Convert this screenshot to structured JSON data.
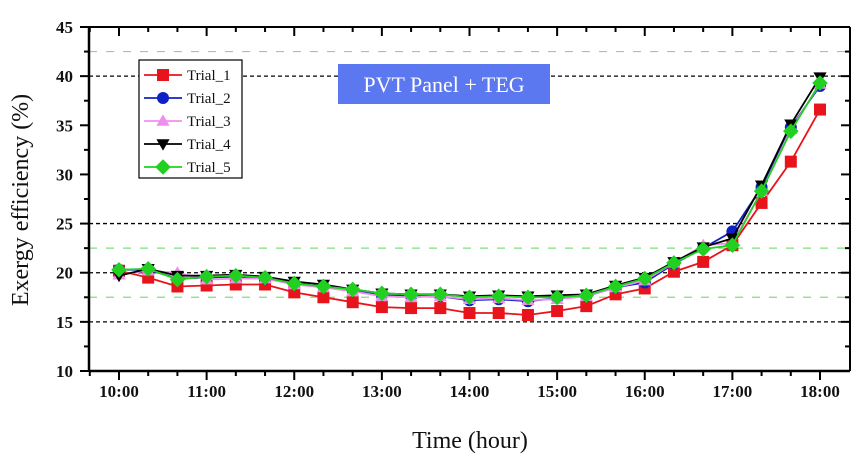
{
  "chart_data": {
    "type": "line",
    "title": "",
    "annotation": "PVT Panel + TEG",
    "annotation_color": "#5b78f0",
    "xlabel": "Time (hour)",
    "ylabel": "Exergy efficiency (%)",
    "xlim": [
      10.0,
      18.0
    ],
    "ylim": [
      10,
      45
    ],
    "x_tick_values": [
      10,
      11,
      12,
      13,
      14,
      15,
      16,
      17,
      18
    ],
    "x_tick_labels": [
      "10:00",
      "11:00",
      "12:00",
      "13:00",
      "14:00",
      "15:00",
      "16:00",
      "17:00",
      "18:00"
    ],
    "y_tick_values": [
      10,
      15,
      20,
      25,
      30,
      35,
      40,
      45
    ],
    "y_tick_labels": [
      "10",
      "15",
      "20",
      "25",
      "30",
      "35",
      "40",
      "45"
    ],
    "grid_black_dashed": [
      15,
      20,
      25,
      40
    ],
    "grid_green_dotted": [
      17.5,
      22.5,
      42.5
    ],
    "legend_position": "top-left",
    "x": [
      10.0,
      10.333,
      10.667,
      11.0,
      11.333,
      11.667,
      12.0,
      12.333,
      12.667,
      13.0,
      13.333,
      13.667,
      14.0,
      14.333,
      14.667,
      15.0,
      15.333,
      15.667,
      16.0,
      16.333,
      16.667,
      17.0,
      17.333,
      17.667,
      18.0
    ],
    "series": [
      {
        "name": "Trial_1",
        "color": "#e8141c",
        "marker": "square",
        "values": [
          20.2,
          19.5,
          18.6,
          18.7,
          18.8,
          18.8,
          18.0,
          17.5,
          17.0,
          16.5,
          16.4,
          16.4,
          15.9,
          15.9,
          15.7,
          16.1,
          16.6,
          17.8,
          18.4,
          20.1,
          21.1,
          22.8,
          27.1,
          31.3,
          36.6
        ]
      },
      {
        "name": "Trial_2",
        "color": "#1020c8",
        "marker": "circle",
        "values": [
          20.3,
          20.3,
          19.4,
          19.5,
          19.6,
          19.4,
          18.9,
          18.6,
          18.2,
          17.7,
          17.6,
          17.6,
          17.2,
          17.3,
          17.1,
          17.4,
          17.6,
          18.5,
          19.0,
          20.9,
          22.5,
          24.2,
          28.7,
          34.8,
          39.0
        ]
      },
      {
        "name": "Trial_3",
        "color": "#f08ef0",
        "marker": "triangle-up",
        "values": [
          19.8,
          20.2,
          20.0,
          19.3,
          19.4,
          19.4,
          18.8,
          18.5,
          18.1,
          17.6,
          17.5,
          17.6,
          17.3,
          17.4,
          17.2,
          17.3,
          17.6,
          18.5,
          19.2,
          21.0,
          22.8,
          23.0,
          28.3,
          34.6,
          39.2
        ]
      },
      {
        "name": "Trial_4",
        "color": "#000000",
        "marker": "triangle-down",
        "values": [
          19.7,
          20.4,
          19.7,
          19.7,
          19.8,
          19.6,
          19.1,
          18.8,
          18.3,
          17.9,
          17.8,
          17.8,
          17.6,
          17.7,
          17.6,
          17.7,
          17.8,
          18.7,
          19.5,
          21.1,
          22.6,
          23.5,
          28.9,
          35.1,
          39.9
        ]
      },
      {
        "name": "Trial_5",
        "color": "#22d022",
        "marker": "diamond",
        "values": [
          20.3,
          20.4,
          19.3,
          19.6,
          19.7,
          19.5,
          18.9,
          18.6,
          18.3,
          17.9,
          17.8,
          17.8,
          17.5,
          17.6,
          17.5,
          17.5,
          17.7,
          18.6,
          19.4,
          21.0,
          22.4,
          22.8,
          28.3,
          34.4,
          39.3
        ]
      }
    ]
  }
}
